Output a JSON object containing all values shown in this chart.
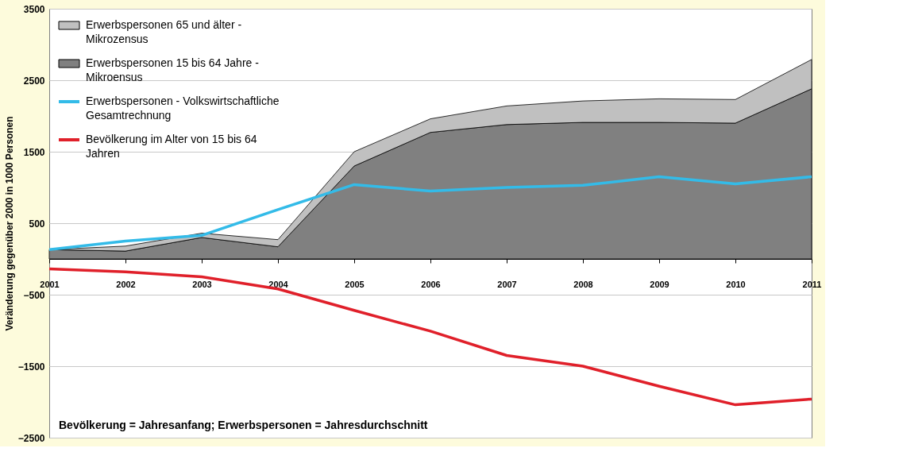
{
  "chart_data": {
    "type": "area",
    "ylabel": "Veränderung gegenüber 2000 in 1000 Personen",
    "categories": [
      "2001",
      "2002",
      "2003",
      "2004",
      "2005",
      "2006",
      "2007",
      "2008",
      "2009",
      "2010",
      "2011"
    ],
    "stacked": true,
    "series": [
      {
        "name": "Erwerbspersonen 15 bis 64 Jahre - Mikroensus",
        "color": "#808080",
        "values": [
          130,
          110,
          300,
          170,
          1300,
          1770,
          1880,
          1910,
          1910,
          1900,
          2380
        ]
      },
      {
        "name": "Erwerbspersonen 65 und älter - Mikrozensus",
        "color": "#c0c0c0",
        "values": [
          0,
          70,
          60,
          100,
          200,
          190,
          260,
          300,
          330,
          330,
          410
        ]
      },
      {
        "name": "Erwerbspersonen - Volkswirtschaftliche Gesamtrechnung",
        "type": "line",
        "color": "#33bbe8",
        "values": [
          130,
          250,
          330,
          690,
          1040,
          950,
          1000,
          1030,
          1150,
          1050,
          1150
        ]
      },
      {
        "name": "Bevölkerung im Alter von 15 bis 64 Jahren",
        "type": "line",
        "color": "#e0202a",
        "values": [
          -140,
          -180,
          -250,
          -420,
          -720,
          -1010,
          -1350,
          -1500,
          -1780,
          -2040,
          -1960
        ]
      }
    ],
    "ylim": [
      -2500,
      3500
    ],
    "yticks": [
      -2500,
      -1500,
      -500,
      500,
      1500,
      2500,
      3500
    ],
    "grid": "y",
    "legend": "top left",
    "annotations": [
      "Bevölkerung = Jahresanfang; Erwerbspersonen = Jahresdurchschnitt"
    ]
  }
}
